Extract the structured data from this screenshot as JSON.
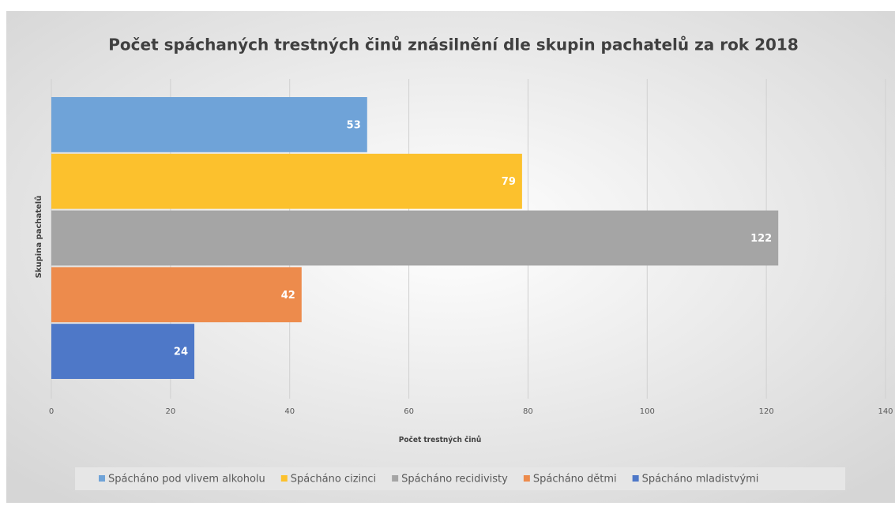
{
  "chart_data": {
    "type": "bar",
    "orientation": "horizontal",
    "title": "Počet spáchaných trestných činů znásilnění dle skupin pachatelů za rok 2018",
    "x_label": "Počet trestných činů",
    "y_label": "Skupina pachatelů",
    "categories": [
      null
    ],
    "series": [
      {
        "name": "Spácháno pod vlivem alkoholu",
        "color": "#6fa3d8",
        "values": [
          53
        ]
      },
      {
        "name": "Spácháno cizinci",
        "color": "#fcc12d",
        "values": [
          79
        ]
      },
      {
        "name": "Spácháno recidivisty",
        "color": "#a5a5a5",
        "values": [
          122
        ]
      },
      {
        "name": "Spácháno dětmi",
        "color": "#ed8b4c",
        "values": [
          42
        ]
      },
      {
        "name": "Spácháno mladistvými",
        "color": "#4e78c8",
        "values": [
          24
        ]
      }
    ],
    "xlim": [
      0,
      140
    ],
    "xticks": [
      0,
      20,
      40,
      60,
      80,
      100,
      120,
      140
    ],
    "grid": true,
    "legend": "bottom"
  }
}
